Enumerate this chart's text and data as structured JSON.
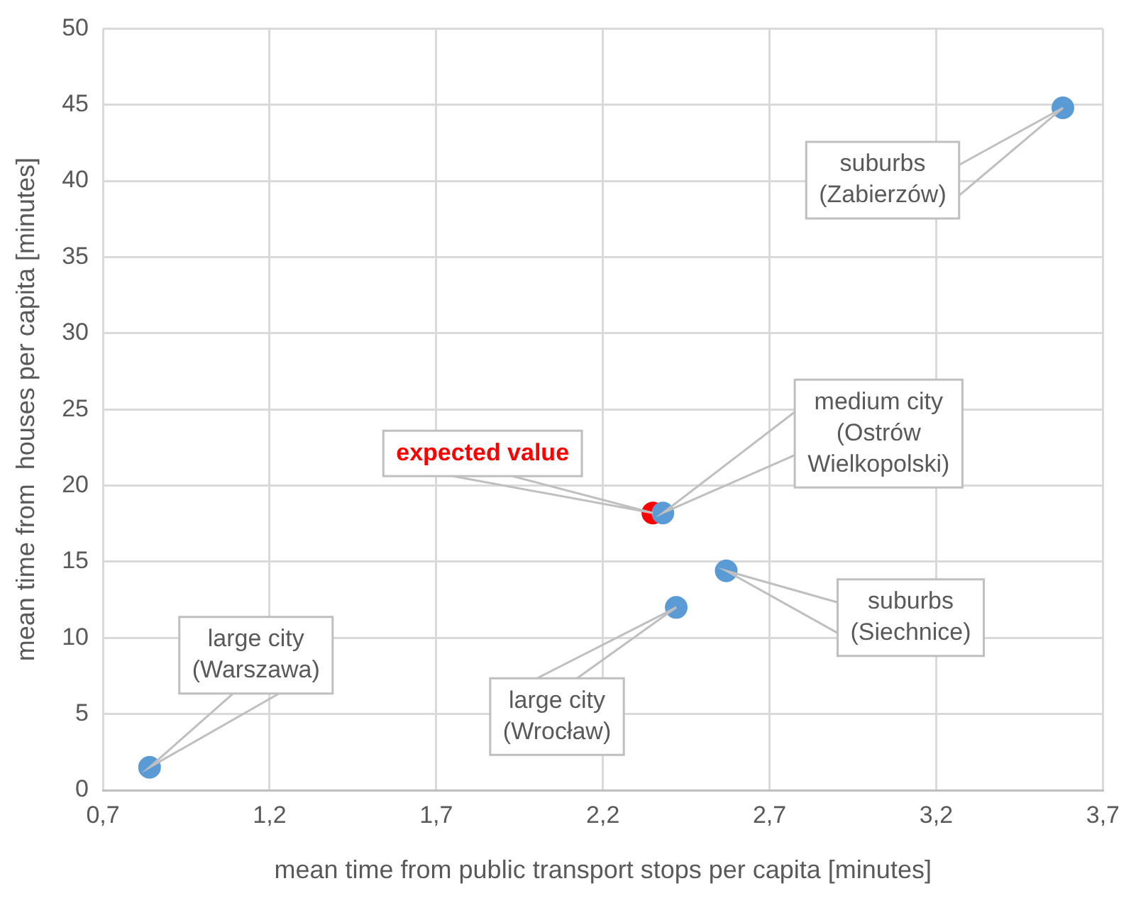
{
  "chart_data": {
    "type": "scatter",
    "xlabel": "mean time from public transport stops per capita [minutes]",
    "ylabel": "mean time from  houses per capita [minutes]",
    "series": [
      {
        "color": "#5b9bd5",
        "x": [
          0.84,
          2.42,
          2.57,
          2.38,
          3.58
        ],
        "values": [
          1.5,
          12.0,
          14.4,
          18.2,
          44.8
        ]
      },
      {
        "color": "#ff0000",
        "x": [
          2.35
        ],
        "values": [
          18.2
        ]
      }
    ],
    "xlim": [
      0.7,
      3.7
    ],
    "xticks": [
      {
        "value": 0.7,
        "label": "0,7"
      },
      {
        "value": 1.2,
        "label": "1,2"
      },
      {
        "value": 1.7,
        "label": "1,7"
      },
      {
        "value": 2.2,
        "label": "2,2"
      },
      {
        "value": 2.7,
        "label": "2,7"
      },
      {
        "value": 3.2,
        "label": "3,2"
      },
      {
        "value": 3.7,
        "label": "3,7"
      }
    ],
    "ylim": [
      0,
      50
    ],
    "yticks": [
      0,
      5,
      10,
      15,
      20,
      25,
      30,
      35,
      40,
      45,
      50
    ],
    "grid": true,
    "legend": false,
    "marker": "circle",
    "annotations": [
      "large city\n(Warszawa)",
      "large city\n(Wrocław)",
      "suburbs\n(Siechnice)",
      "medium city\n(Ostrów\nWielkopolski)",
      "suburbs\n(Zabierzów)",
      "expected value"
    ]
  }
}
